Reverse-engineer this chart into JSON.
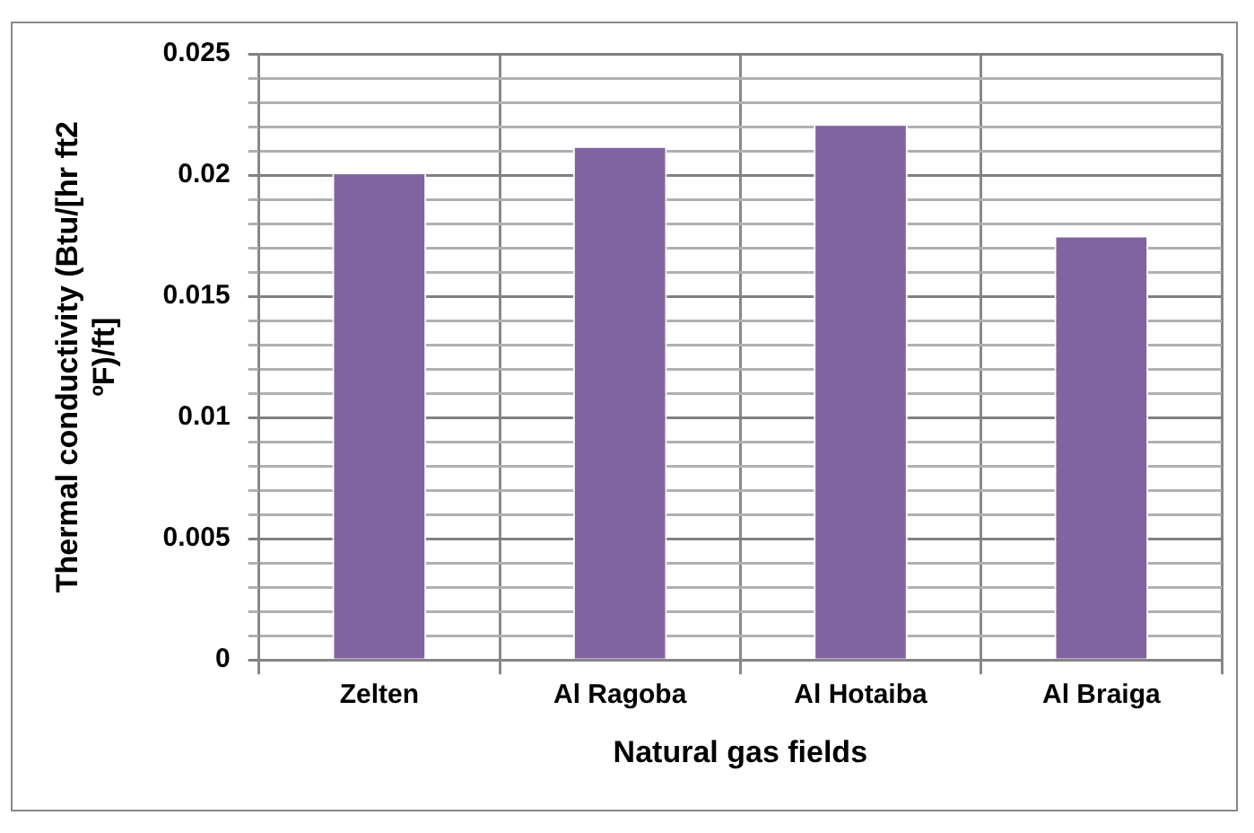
{
  "chart_data": {
    "type": "bar",
    "xlabel": "Natural gas fields",
    "ylabel": "Thermal conductivity (Btu/[hr ft2 ºF)/ft]",
    "categories": [
      "Zelten",
      "Al Ragoba",
      "Al Hotaiba",
      "Al Braiga"
    ],
    "values": [
      0.0201,
      0.0212,
      0.0221,
      0.0175
    ],
    "color": "#8064a2",
    "ylim": [
      0,
      0.025
    ],
    "yticks": [
      0,
      {
        "value": 0.001,
        "label": null
      },
      {
        "value": 0.002,
        "label": null
      },
      {
        "value": 0.003,
        "label": null
      },
      {
        "value": 0.004,
        "label": null
      },
      0.005,
      {
        "value": 0.006,
        "label": null
      },
      {
        "value": 0.007,
        "label": null
      },
      {
        "value": 0.008,
        "label": null
      },
      {
        "value": 0.009,
        "label": null
      },
      0.01,
      {
        "value": 0.011,
        "label": null
      },
      {
        "value": 0.012,
        "label": null
      },
      {
        "value": 0.013,
        "label": null
      },
      {
        "value": 0.014,
        "label": null
      },
      0.015,
      {
        "value": 0.016,
        "label": null
      },
      {
        "value": 0.017,
        "label": null
      },
      {
        "value": 0.018,
        "label": null
      },
      {
        "value": 0.019,
        "label": null
      },
      0.02,
      {
        "value": 0.021,
        "label": null
      },
      {
        "value": 0.022,
        "label": null
      },
      {
        "value": 0.023,
        "label": null
      },
      {
        "value": 0.024,
        "label": null
      },
      0.025
    ],
    "grid": true,
    "legend": false
  }
}
